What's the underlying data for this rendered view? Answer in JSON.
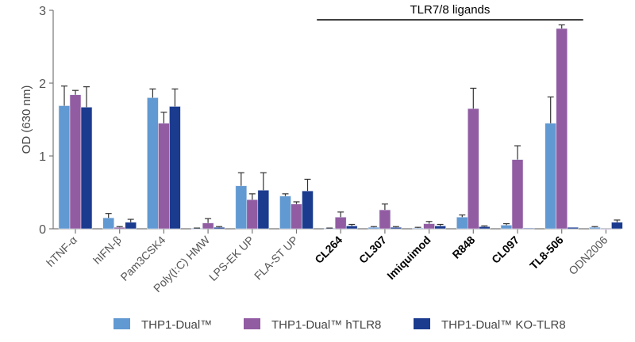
{
  "chart_data": {
    "type": "bar",
    "title": "",
    "xlabel": "",
    "ylabel": "OD (630 nm)",
    "ylim": [
      0,
      3
    ],
    "yticks": [
      "0",
      "1",
      "2",
      "3"
    ],
    "grid": false,
    "legend_position": "bottom",
    "categories": [
      "hTNF-α",
      "hIFN-β",
      "Pam3CSK4",
      "Poly(I:C) HMW",
      "LPS-EK UP",
      "FLA-ST UP",
      "CL264",
      "CL307",
      "Imiquimod",
      "R848",
      "CL097",
      "TL8-506",
      "ODN2006"
    ],
    "bold_categories": [
      "CL264",
      "CL307",
      "Imiquimod",
      "R848",
      "CL097",
      "TL8-506"
    ],
    "bracket": {
      "label": "TLR7/8 ligands",
      "from": "CL264",
      "to": "TL8-506"
    },
    "series": [
      {
        "name": "THP1-Dual™",
        "color": "#6199d2",
        "values": [
          1.69,
          0.15,
          1.8,
          0.005,
          0.59,
          0.45,
          0.005,
          0.02,
          0.01,
          0.16,
          0.05,
          1.45,
          0.02
        ],
        "error": [
          0.27,
          0.06,
          0.12,
          0.005,
          0.18,
          0.03,
          0.005,
          0.01,
          0.01,
          0.03,
          0.02,
          0.36,
          0.01
        ]
      },
      {
        "name": "THP1-Dual™ hTLR8",
        "color": "#925ca2",
        "values": [
          1.84,
          0.02,
          1.45,
          0.08,
          0.4,
          0.34,
          0.16,
          0.26,
          0.07,
          1.65,
          0.95,
          2.75,
          0.0
        ],
        "error": [
          0.06,
          0.01,
          0.15,
          0.06,
          0.08,
          0.03,
          0.07,
          0.08,
          0.03,
          0.28,
          0.19,
          0.05,
          0.0
        ]
      },
      {
        "name": "THP1-Dual™ KO-TLR8",
        "color": "#1b3b8f",
        "values": [
          1.67,
          0.09,
          1.68,
          0.02,
          0.53,
          0.52,
          0.04,
          0.02,
          0.04,
          0.03,
          0.01,
          0.02,
          0.09
        ],
        "error": [
          0.28,
          0.04,
          0.24,
          0.01,
          0.24,
          0.16,
          0.02,
          0.01,
          0.02,
          0.01,
          0.0,
          0.0,
          0.03
        ]
      }
    ]
  }
}
